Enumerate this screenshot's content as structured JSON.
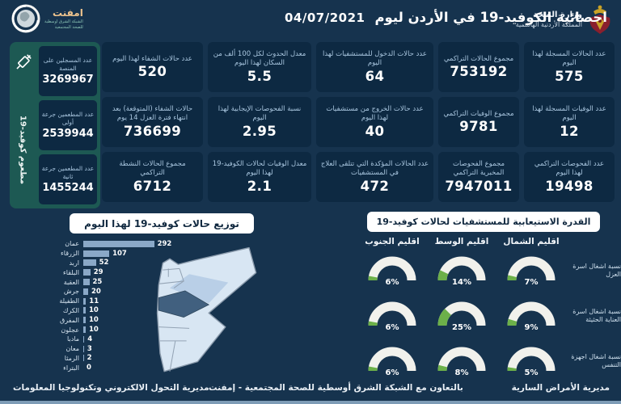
{
  "header": {
    "title": "احصائية الكوفيد-19 في الأردن ليوم",
    "date": "04/07/2021",
    "ministry": {
      "line1": "وزارة الصحة",
      "line2": "المملكة الأردنية الهاشمية"
    },
    "emphnet": {
      "name": "امفنت",
      "sub1": "الشبكة الشرق اوسطية",
      "sub2": "للصحة المجتمعية"
    }
  },
  "vaccination": {
    "vertical_label": "مطعوم كوفيد-19",
    "cards": [
      {
        "label": "عدد المسجلين على المنصة",
        "value": "3269967"
      },
      {
        "label": "عدد المطعمين جرعة أولى",
        "value": "2539944"
      },
      {
        "label": "عدد المطعمين جرعة ثانية",
        "value": "1455244"
      }
    ]
  },
  "stats": {
    "columns": [
      {
        "cards": [
          {
            "label": "عدد الحالات المسجلة لهذا اليوم",
            "value": "575"
          },
          {
            "label": "عدد الوفيات المسجلة لهذا اليوم",
            "value": "12"
          },
          {
            "label": "عدد الفحوصات التراكمي لهذا اليوم",
            "value": "19498"
          }
        ]
      },
      {
        "cards": [
          {
            "label": "مجموع الحالات التراكمي",
            "value": "753192"
          },
          {
            "label": "مجموع الوفيات التراكمي",
            "value": "9781"
          },
          {
            "label": "مجموع الفحوصات المخبرية التراكمي",
            "value": "7947011"
          }
        ]
      },
      {
        "cards": [
          {
            "label": "عدد حالات الدخول للمستشفيات لهذا اليوم",
            "value": "64"
          },
          {
            "label": "عدد حالات الخروج من مستشفيات لهذا اليوم",
            "value": "40"
          },
          {
            "label": "عدد الحالات المؤكدة التي تتلقى العلاج في المستشفيات",
            "value": "472"
          }
        ]
      },
      {
        "cards": [
          {
            "label": "معدل الحدوث لكل 100 ألف من السكان لهذا اليوم",
            "value": "5.5"
          },
          {
            "label": "نسبة الفحوصات الإيجابية لهذا اليوم",
            "value": "2.95"
          },
          {
            "label": "معدل الوفيات لحالات الكوفيد-19 لهذا اليوم",
            "value": "2.1"
          }
        ]
      },
      {
        "cards": [
          {
            "label": "عدد حالات الشفاء لهذا اليوم",
            "value": "520"
          },
          {
            "label": "حالات الشفاء (المتوقعة) بعد انتهاء فترة العزل 14 يوم",
            "value": "736699"
          },
          {
            "label": "مجموع الحالات النشطة التراكمي",
            "value": "6712"
          }
        ]
      }
    ]
  },
  "chart_data": [
    {
      "type": "bar",
      "orientation": "horizontal",
      "title": "توزيع حالات كوفيد-19 لهذا اليوم",
      "categories": [
        "عمان",
        "الزرقاء",
        "اربد",
        "البلقاء",
        "العقبة",
        "جرش",
        "الطفيلة",
        "الكرك",
        "المفرق",
        "عجلون",
        "مادبا",
        "معان",
        "الرمثا",
        "البتراء"
      ],
      "values": [
        292,
        107,
        52,
        29,
        25,
        20,
        11,
        10,
        10,
        10,
        4,
        3,
        2,
        0
      ],
      "xlim": [
        0,
        300
      ],
      "value_labels": true,
      "grid": false
    },
    {
      "type": "gauge-grid",
      "title": "القدرة الاستيعابية للمستشفيات لحالات كوفيد-19",
      "columns": [
        "اقليم الشمال",
        "اقليم الوسط",
        "اقليم الجنوب"
      ],
      "rows": [
        {
          "label": "نسبة اشغال اسرة العزل",
          "values": [
            7,
            14,
            6
          ]
        },
        {
          "label": "نسبة اشغال اسرة العناية الحثيثة",
          "values": [
            9,
            25,
            6
          ]
        },
        {
          "label": "نسبة اشغال اجهزة التنفس",
          "values": [
            5,
            8,
            6
          ]
        }
      ],
      "unit": "%",
      "range": [
        0,
        100
      ]
    }
  ],
  "footer": {
    "right": "مديرية الأمراض السارية",
    "center": "بالتعاون مع الشبكة الشرق أوسطية للصحة المجتمعية - إمفنت",
    "left": "مديرية التحول الالكتروني وتكنولوجيا المعلومات"
  },
  "colors": {
    "page_bg": "#16334e",
    "card_bg": "#0d2942",
    "sidebar_bg": "#1d5953",
    "label_text": "#a9c6df",
    "bar": "#8aa8c7",
    "gauge_track": "#f1f1ec",
    "gauge_fill": "#6cb049",
    "map_fill": "#d8e6f3",
    "map_highlight": "#41607f",
    "map_tint": "#b9cfe7"
  }
}
